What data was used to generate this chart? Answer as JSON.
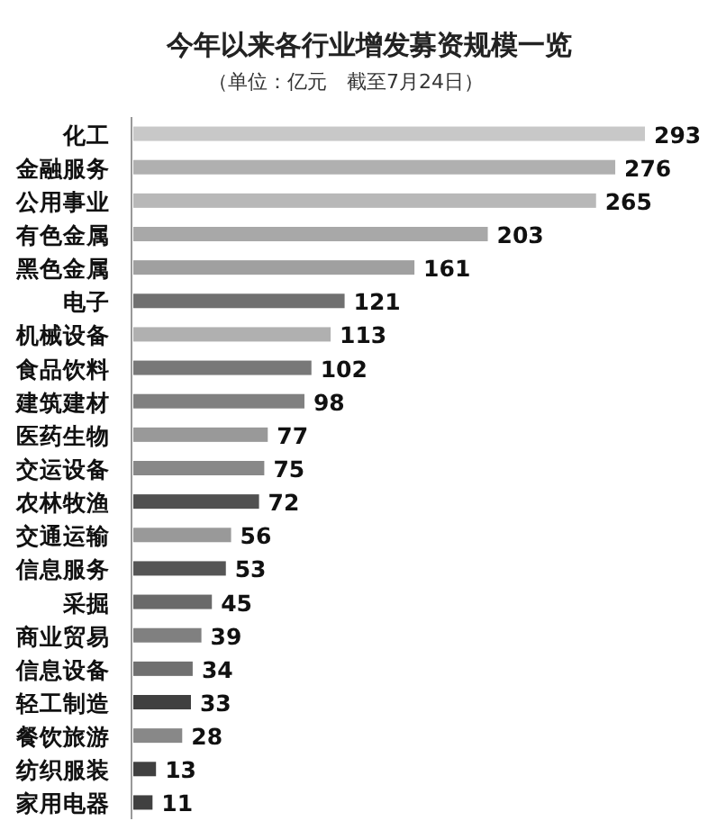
{
  "chart_data": {
    "type": "bar",
    "orientation": "horizontal",
    "title": "今年以来各行业增发募资规模一览",
    "subtitle": "（单位：亿元　截至7月24日）",
    "categories": [
      "化工",
      "金融服务",
      "公用事业",
      "有色金属",
      "黑色金属",
      "电子",
      "机械设备",
      "食品饮料",
      "建筑建材",
      "医药生物",
      "交运设备",
      "农林牧渔",
      "交通运输",
      "信息服务",
      "采掘",
      "商业贸易",
      "信息设备",
      "轻工制造",
      "餐饮旅游",
      "纺织服装",
      "家用电器"
    ],
    "values": [
      293,
      276,
      265,
      203,
      161,
      121,
      113,
      102,
      98,
      77,
      75,
      72,
      56,
      53,
      45,
      39,
      34,
      33,
      28,
      13,
      11
    ],
    "colors": [
      "#c8c8c8",
      "#b0b0b0",
      "#b8b8b8",
      "#a8a8a8",
      "#a0a0a0",
      "#707070",
      "#b0b0b0",
      "#787878",
      "#808080",
      "#999999",
      "#888888",
      "#505050",
      "#999999",
      "#555555",
      "#6a6a6a",
      "#808080",
      "#707070",
      "#404040",
      "#888888",
      "#404040",
      "#404040"
    ],
    "data_labels": true
  }
}
